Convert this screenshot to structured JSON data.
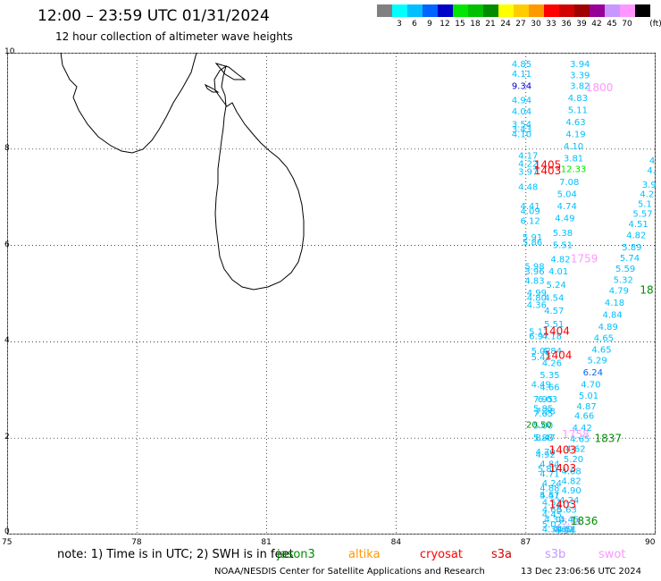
{
  "header": {
    "title": "12:00 – 23:59 UTC 01/31/2024",
    "subtitle": "12 hour collection of altimeter wave heights"
  },
  "colorbar": {
    "unit": "(ft)",
    "swatches": [
      {
        "color": "#808080",
        "label": ""
      },
      {
        "color": "#00ffff",
        "label": "3"
      },
      {
        "color": "#00bfff",
        "label": "6"
      },
      {
        "color": "#0064ff",
        "label": "9"
      },
      {
        "color": "#0000c8",
        "label": "12"
      },
      {
        "color": "#00e600",
        "label": "15"
      },
      {
        "color": "#00c000",
        "label": "18"
      },
      {
        "color": "#008c00",
        "label": "21"
      },
      {
        "color": "#ffff00",
        "label": "24"
      },
      {
        "color": "#ffcc00",
        "label": "27"
      },
      {
        "color": "#ff9900",
        "label": "30"
      },
      {
        "color": "#ff0000",
        "label": "33"
      },
      {
        "color": "#d20000",
        "label": "36"
      },
      {
        "color": "#a00000",
        "label": "39"
      },
      {
        "color": "#960096",
        "label": "42"
      },
      {
        "color": "#c896ff",
        "label": "45"
      },
      {
        "color": "#ff96ff",
        "label": "70"
      },
      {
        "color": "#000000",
        "label": ""
      }
    ]
  },
  "axes": {
    "x_ticks": [
      "75",
      "78",
      "81",
      "84",
      "87",
      "90"
    ],
    "y_ticks": [
      "0",
      "2",
      "4",
      "6",
      "8",
      "10"
    ],
    "lon_range": [
      75,
      90
    ],
    "lat_range": [
      0,
      10
    ]
  },
  "legend": {
    "note": "note:  1) Time is in UTC; 2) SWH is in feet",
    "satellites": [
      {
        "name": "jason3",
        "color": "#008c00"
      },
      {
        "name": "altika",
        "color": "#ff9900"
      },
      {
        "name": "cryosat",
        "color": "#ff0000"
      },
      {
        "name": "s3a",
        "color": "#d20000"
      },
      {
        "name": "s3b",
        "color": "#c896ff"
      },
      {
        "name": "swot",
        "color": "#ff96ff"
      }
    ]
  },
  "footer": {
    "agency": "NOAA/NESDIS Center for Satellite Applications and Research",
    "generated": "13 Dec 23:06:56 UTC 2024"
  },
  "map_data": {
    "observations": [
      {
        "lon": 86.9,
        "lat": 9.7,
        "v": "4.85",
        "color": "#00bfff"
      },
      {
        "lon": 86.9,
        "lat": 9.5,
        "v": "4.11",
        "color": "#00bfff"
      },
      {
        "lon": 86.9,
        "lat": 9.25,
        "v": "9.34",
        "color": "#0000c8"
      },
      {
        "lon": 86.9,
        "lat": 8.95,
        "v": "4.94",
        "color": "#00bfff"
      },
      {
        "lon": 86.9,
        "lat": 8.72,
        "v": "4.04",
        "color": "#00bfff"
      },
      {
        "lon": 86.9,
        "lat": 8.45,
        "v": "3.54",
        "color": "#00bfff"
      },
      {
        "lon": 86.9,
        "lat": 8.35,
        "v": "3.43",
        "color": "#00bfff"
      },
      {
        "lon": 86.9,
        "lat": 8.25,
        "v": "4.10",
        "color": "#00bfff"
      },
      {
        "lon": 87.05,
        "lat": 7.8,
        "v": "4.17",
        "color": "#00bfff"
      },
      {
        "lon": 87.05,
        "lat": 7.63,
        "v": "4.22",
        "color": "#00bfff"
      },
      {
        "lon": 87.05,
        "lat": 7.47,
        "v": "3.97",
        "color": "#00bfff"
      },
      {
        "lon": 87.05,
        "lat": 7.15,
        "v": "4.48",
        "color": "#00bfff"
      },
      {
        "lon": 87.1,
        "lat": 6.75,
        "v": "4.41",
        "color": "#00bfff"
      },
      {
        "lon": 87.1,
        "lat": 6.65,
        "v": "4.09",
        "color": "#00bfff"
      },
      {
        "lon": 87.1,
        "lat": 6.45,
        "v": "6.12",
        "color": "#00bfff"
      },
      {
        "lon": 87.15,
        "lat": 6.1,
        "v": "5.91",
        "color": "#00bfff"
      },
      {
        "lon": 87.15,
        "lat": 6.0,
        "v": "5.86",
        "color": "#00bfff"
      },
      {
        "lon": 87.2,
        "lat": 5.5,
        "v": "5.98",
        "color": "#00bfff"
      },
      {
        "lon": 87.2,
        "lat": 5.4,
        "v": "3.96",
        "color": "#00bfff"
      },
      {
        "lon": 87.2,
        "lat": 5.2,
        "v": "4.83",
        "color": "#00bfff"
      },
      {
        "lon": 87.25,
        "lat": 4.95,
        "v": "4.99",
        "color": "#00bfff"
      },
      {
        "lon": 87.25,
        "lat": 4.85,
        "v": "4.80",
        "color": "#00bfff"
      },
      {
        "lon": 87.25,
        "lat": 4.7,
        "v": "4.36",
        "color": "#00bfff"
      },
      {
        "lon": 87.3,
        "lat": 4.15,
        "v": "5.11",
        "color": "#00bfff"
      },
      {
        "lon": 87.3,
        "lat": 4.05,
        "v": "6.97",
        "color": "#00bfff"
      },
      {
        "lon": 87.35,
        "lat": 3.75,
        "v": "5.02",
        "color": "#00bfff"
      },
      {
        "lon": 87.35,
        "lat": 3.62,
        "v": "5.42",
        "color": "#00bfff"
      },
      {
        "lon": 87.35,
        "lat": 3.05,
        "v": "4.49",
        "color": "#00bfff"
      },
      {
        "lon": 87.4,
        "lat": 2.75,
        "v": "7.95",
        "color": "#00bfff"
      },
      {
        "lon": 87.4,
        "lat": 2.55,
        "v": "5.85",
        "color": "#00bfff"
      },
      {
        "lon": 87.4,
        "lat": 2.45,
        "v": "7.65",
        "color": "#00bfff"
      },
      {
        "lon": 87.4,
        "lat": 2.2,
        "v": "5.00",
        "color": "#00bfff"
      },
      {
        "lon": 87.4,
        "lat": 1.95,
        "v": "5.88",
        "color": "#00bfff"
      },
      {
        "lon": 87.45,
        "lat": 1.6,
        "v": "4.92",
        "color": "#00bfff"
      },
      {
        "lon": 87.5,
        "lat": 1.3,
        "v": "5.80",
        "color": "#00bfff"
      },
      {
        "lon": 87.55,
        "lat": 0.9,
        "v": "4.88",
        "color": "#00bfff"
      },
      {
        "lon": 87.55,
        "lat": 0.75,
        "v": "5.41",
        "color": "#00bfff"
      },
      {
        "lon": 87.6,
        "lat": 0.6,
        "v": "4.51",
        "color": "#00bfff"
      },
      {
        "lon": 87.6,
        "lat": 0.35,
        "v": "4.45",
        "color": "#00bfff"
      },
      {
        "lon": 87.65,
        "lat": 0.25,
        "v": "4.30",
        "color": "#00bfff"
      },
      {
        "lon": 87.6,
        "lat": 0.15,
        "v": "5.02",
        "color": "#00bfff"
      },
      {
        "lon": 87.6,
        "lat": 0.05,
        "v": "4.39",
        "color": "#00bfff"
      },
      {
        "lon": 88.25,
        "lat": 9.7,
        "v": "3.94",
        "color": "#00bfff"
      },
      {
        "lon": 88.25,
        "lat": 9.47,
        "v": "3.39",
        "color": "#00bfff"
      },
      {
        "lon": 88.25,
        "lat": 9.25,
        "v": "3.82",
        "color": "#00bfff"
      },
      {
        "lon": 88.2,
        "lat": 9.0,
        "v": "4.83",
        "color": "#00bfff"
      },
      {
        "lon": 88.2,
        "lat": 8.75,
        "v": "5.11",
        "color": "#00bfff"
      },
      {
        "lon": 88.15,
        "lat": 8.5,
        "v": "4.63",
        "color": "#00bfff"
      },
      {
        "lon": 88.15,
        "lat": 8.25,
        "v": "4.19",
        "color": "#00bfff"
      },
      {
        "lon": 88.1,
        "lat": 8.0,
        "v": "4.10",
        "color": "#00bfff"
      },
      {
        "lon": 88.1,
        "lat": 7.75,
        "v": "3.81",
        "color": "#00bfff"
      },
      {
        "lon": 88.1,
        "lat": 7.52,
        "v": "12.33",
        "color": "#00e600"
      },
      {
        "lon": 88.0,
        "lat": 7.25,
        "v": "7.08",
        "color": "#00bfff"
      },
      {
        "lon": 87.95,
        "lat": 7.0,
        "v": "5.04",
        "color": "#00bfff"
      },
      {
        "lon": 87.95,
        "lat": 6.75,
        "v": "4.74",
        "color": "#00bfff"
      },
      {
        "lon": 87.9,
        "lat": 6.5,
        "v": "4.49",
        "color": "#00bfff"
      },
      {
        "lon": 87.85,
        "lat": 6.2,
        "v": "5.38",
        "color": "#00bfff"
      },
      {
        "lon": 87.85,
        "lat": 5.95,
        "v": "5.51",
        "color": "#00bfff"
      },
      {
        "lon": 87.8,
        "lat": 5.65,
        "v": "4.82",
        "color": "#00bfff"
      },
      {
        "lon": 87.75,
        "lat": 5.4,
        "v": "4.01",
        "color": "#00bfff"
      },
      {
        "lon": 87.7,
        "lat": 5.12,
        "v": "5.24",
        "color": "#00bfff"
      },
      {
        "lon": 87.65,
        "lat": 4.85,
        "v": "4.54",
        "color": "#00bfff"
      },
      {
        "lon": 87.65,
        "lat": 4.58,
        "v": "4.57",
        "color": "#00bfff"
      },
      {
        "lon": 87.65,
        "lat": 4.3,
        "v": "5.51",
        "color": "#00bfff"
      },
      {
        "lon": 87.6,
        "lat": 4.05,
        "v": "4.18",
        "color": "#00bfff"
      },
      {
        "lon": 87.6,
        "lat": 3.75,
        "v": "4.84",
        "color": "#00bfff"
      },
      {
        "lon": 87.6,
        "lat": 3.5,
        "v": "4.26",
        "color": "#00bfff"
      },
      {
        "lon": 87.55,
        "lat": 3.25,
        "v": "5.35",
        "color": "#00bfff"
      },
      {
        "lon": 87.55,
        "lat": 3.0,
        "v": "4.66",
        "color": "#00bfff"
      },
      {
        "lon": 87.5,
        "lat": 2.75,
        "v": "6.03",
        "color": "#00bfff"
      },
      {
        "lon": 87.45,
        "lat": 2.5,
        "v": "7.28",
        "color": "#00bfff"
      },
      {
        "lon": 87.3,
        "lat": 2.22,
        "v": "20.50",
        "color": "#008c00"
      },
      {
        "lon": 87.45,
        "lat": 1.95,
        "v": "8.47",
        "color": "#00bfff"
      },
      {
        "lon": 87.45,
        "lat": 1.65,
        "v": "4.70",
        "color": "#00bfff"
      },
      {
        "lon": 87.55,
        "lat": 1.4,
        "v": "4.84",
        "color": "#00bfff"
      },
      {
        "lon": 87.55,
        "lat": 1.2,
        "v": "4.71",
        "color": "#00bfff"
      },
      {
        "lon": 87.6,
        "lat": 1.0,
        "v": "4.24",
        "color": "#00bfff"
      },
      {
        "lon": 87.55,
        "lat": 0.75,
        "v": "4.57",
        "color": "#00bfff"
      },
      {
        "lon": 87.6,
        "lat": 0.45,
        "v": "4.66",
        "color": "#00bfff"
      },
      {
        "lon": 87.85,
        "lat": 0.05,
        "v": "4.60",
        "color": "#00bfff"
      },
      {
        "lon": 88.05,
        "lat": 0.2,
        "v": "5.15",
        "color": "#c896ff"
      },
      {
        "lon": 87.9,
        "lat": 0.05,
        "v": "4.67",
        "color": "#c896ff"
      },
      {
        "lon": 89.95,
        "lat": 7.7,
        "v": "4",
        "color": "#00bfff"
      },
      {
        "lon": 89.9,
        "lat": 7.5,
        "v": "4.",
        "color": "#00bfff"
      },
      {
        "lon": 89.85,
        "lat": 7.2,
        "v": "3.9",
        "color": "#00bfff"
      },
      {
        "lon": 89.8,
        "lat": 7.0,
        "v": "4.2",
        "color": "#00bfff"
      },
      {
        "lon": 89.75,
        "lat": 6.8,
        "v": "5.1",
        "color": "#00bfff"
      },
      {
        "lon": 89.7,
        "lat": 6.6,
        "v": "5.57",
        "color": "#00bfff"
      },
      {
        "lon": 89.6,
        "lat": 6.38,
        "v": "4.51",
        "color": "#00bfff"
      },
      {
        "lon": 89.55,
        "lat": 6.15,
        "v": "4.82",
        "color": "#00bfff"
      },
      {
        "lon": 89.45,
        "lat": 5.9,
        "v": "5.89",
        "color": "#00bfff"
      },
      {
        "lon": 89.4,
        "lat": 5.68,
        "v": "5.74",
        "color": "#00bfff"
      },
      {
        "lon": 89.3,
        "lat": 5.45,
        "v": "5.59",
        "color": "#00bfff"
      },
      {
        "lon": 89.25,
        "lat": 5.22,
        "v": "5.32",
        "color": "#00bfff"
      },
      {
        "lon": 89.15,
        "lat": 5.0,
        "v": "4.79",
        "color": "#00bfff"
      },
      {
        "lon": 89.05,
        "lat": 4.75,
        "v": "4.18",
        "color": "#00bfff"
      },
      {
        "lon": 89.0,
        "lat": 4.5,
        "v": "4.84",
        "color": "#00bfff"
      },
      {
        "lon": 88.9,
        "lat": 4.25,
        "v": "4.89",
        "color": "#00bfff"
      },
      {
        "lon": 88.8,
        "lat": 4.02,
        "v": "4.65",
        "color": "#00bfff"
      },
      {
        "lon": 88.75,
        "lat": 3.78,
        "v": "4.65",
        "color": "#00bfff"
      },
      {
        "lon": 88.65,
        "lat": 3.55,
        "v": "5.29",
        "color": "#00bfff"
      },
      {
        "lon": 88.55,
        "lat": 3.3,
        "v": "6.24",
        "color": "#0064ff"
      },
      {
        "lon": 88.5,
        "lat": 3.05,
        "v": "4.70",
        "color": "#00bfff"
      },
      {
        "lon": 88.45,
        "lat": 2.82,
        "v": "5.01",
        "color": "#00bfff"
      },
      {
        "lon": 88.4,
        "lat": 2.6,
        "v": "4.87",
        "color": "#00bfff"
      },
      {
        "lon": 88.35,
        "lat": 2.4,
        "v": "4.66",
        "color": "#00bfff"
      },
      {
        "lon": 88.3,
        "lat": 2.15,
        "v": "4.42",
        "color": "#00bfff"
      },
      {
        "lon": 88.25,
        "lat": 1.92,
        "v": "4.65",
        "color": "#00bfff"
      },
      {
        "lon": 88.15,
        "lat": 1.72,
        "v": "4.62",
        "color": "#00bfff"
      },
      {
        "lon": 88.1,
        "lat": 1.5,
        "v": "5.20",
        "color": "#00bfff"
      },
      {
        "lon": 88.05,
        "lat": 1.25,
        "v": "4.68",
        "color": "#00bfff"
      },
      {
        "lon": 88.05,
        "lat": 1.05,
        "v": "4.82",
        "color": "#00bfff"
      },
      {
        "lon": 88.05,
        "lat": 0.85,
        "v": "4.90",
        "color": "#00bfff"
      },
      {
        "lon": 88.0,
        "lat": 0.65,
        "v": "4.24",
        "color": "#00bfff"
      },
      {
        "lon": 87.95,
        "lat": 0.45,
        "v": "5.63",
        "color": "#00bfff"
      },
      {
        "lon": 88.0,
        "lat": 0.25,
        "v": "4.45",
        "color": "#00bfff"
      },
      {
        "lon": 87.95,
        "lat": 0.05,
        "v": "4.51",
        "color": "#00bfff"
      },
      {
        "lon": 87.9,
        "lat": -0.1,
        "v": "4.94",
        "color": "#00bfff"
      }
    ],
    "time_tags": [
      {
        "lon": 88.7,
        "lat": 9.2,
        "t": "1800",
        "color": "#ff96ff"
      },
      {
        "lon": 87.5,
        "lat": 7.6,
        "t": "1405",
        "color": "#ff0000"
      },
      {
        "lon": 87.5,
        "lat": 7.48,
        "t": "1403",
        "color": "#ff0000"
      },
      {
        "lon": 88.35,
        "lat": 5.65,
        "t": "1759",
        "color": "#ff96ff"
      },
      {
        "lon": 87.7,
        "lat": 4.15,
        "t": "1404",
        "color": "#ff0000"
      },
      {
        "lon": 87.75,
        "lat": 3.65,
        "t": "1404",
        "color": "#ff0000"
      },
      {
        "lon": 88.15,
        "lat": 2.0,
        "t": "1758",
        "color": "#ff96ff"
      },
      {
        "lon": 88.9,
        "lat": 1.92,
        "t": "1837",
        "color": "#008c00"
      },
      {
        "lon": 90.0,
        "lat": 5.0,
        "t": "18",
        "color": "#008c00"
      },
      {
        "lon": 87.85,
        "lat": 1.68,
        "t": "1403",
        "color": "#ff0000"
      },
      {
        "lon": 87.85,
        "lat": 1.3,
        "t": "1403",
        "color": "#ff0000"
      },
      {
        "lon": 87.85,
        "lat": 0.55,
        "t": "1403",
        "color": "#ff0000"
      },
      {
        "lon": 88.35,
        "lat": 0.2,
        "t": "1836",
        "color": "#008c00"
      }
    ]
  }
}
